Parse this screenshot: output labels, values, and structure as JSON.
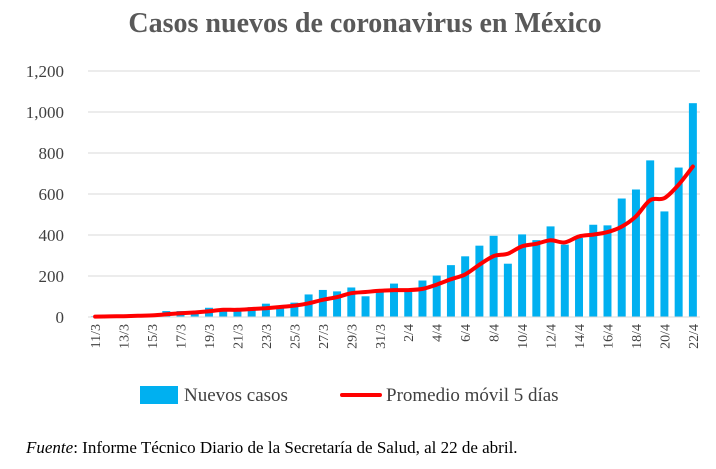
{
  "chart_data": {
    "type": "bar",
    "title": "Casos nuevos de coronavirus en México",
    "xlabel": "",
    "ylabel": "",
    "ylim": [
      0,
      1200
    ],
    "yticks": [
      0,
      200,
      400,
      600,
      800,
      1000,
      1200
    ],
    "ytick_labels": [
      "0",
      "200",
      "400",
      "600",
      "800",
      "1,000",
      "1,200"
    ],
    "grid": true,
    "legend_position": "bottom",
    "categories": [
      "11/3",
      "12/3",
      "13/3",
      "14/3",
      "15/3",
      "16/3",
      "17/3",
      "18/3",
      "19/3",
      "20/3",
      "21/3",
      "22/3",
      "23/3",
      "24/3",
      "25/3",
      "26/3",
      "27/3",
      "28/3",
      "29/3",
      "30/3",
      "31/3",
      "1/4",
      "2/4",
      "3/4",
      "4/4",
      "5/4",
      "6/4",
      "7/4",
      "8/4",
      "9/4",
      "10/4",
      "11/4",
      "12/4",
      "13/4",
      "14/4",
      "15/4",
      "16/4",
      "17/4",
      "18/4",
      "19/4",
      "20/4",
      "21/4",
      "22/4"
    ],
    "tick_labels": [
      "11/3",
      "13/3",
      "15/3",
      "17/3",
      "19/3",
      "21/3",
      "23/3",
      "25/3",
      "27/3",
      "29/3",
      "31/3",
      "2/4",
      "4/4",
      "6/4",
      "8/4",
      "10/4",
      "12/4",
      "14/4",
      "16/4",
      "18/4",
      "20/4",
      "22/4"
    ],
    "series": [
      {
        "name": "Nuevos casos",
        "type": "bar",
        "color": "#00B0F0",
        "values": [
          4,
          4,
          4,
          12,
          15,
          29,
          29,
          25,
          45,
          38,
          39,
          48,
          65,
          51,
          70,
          110,
          132,
          125,
          144,
          101,
          121,
          163,
          125,
          178,
          202,
          253,
          296,
          348,
          396,
          260,
          403,
          375,
          442,
          353,
          386,
          450,
          447,
          578,
          622,
          764,
          515,
          729,
          1043
        ]
      },
      {
        "name": "Promedio móvil 5 días",
        "type": "line",
        "color": "#FF0000",
        "values": [
          2,
          3,
          4,
          6,
          8,
          13,
          18,
          22,
          28,
          35,
          35,
          39,
          43,
          49,
          55,
          67,
          84,
          97,
          116,
          122,
          128,
          131,
          131,
          137,
          158,
          184,
          208,
          255,
          297,
          309,
          345,
          357,
          374,
          364,
          393,
          402,
          414,
          441,
          491,
          570,
          580,
          646,
          734
        ]
      }
    ]
  },
  "footer": {
    "source_label": "Fuente",
    "source_text": ": Informe Técnico Diario de la Secretaría de Salud, al 22 de abril."
  }
}
